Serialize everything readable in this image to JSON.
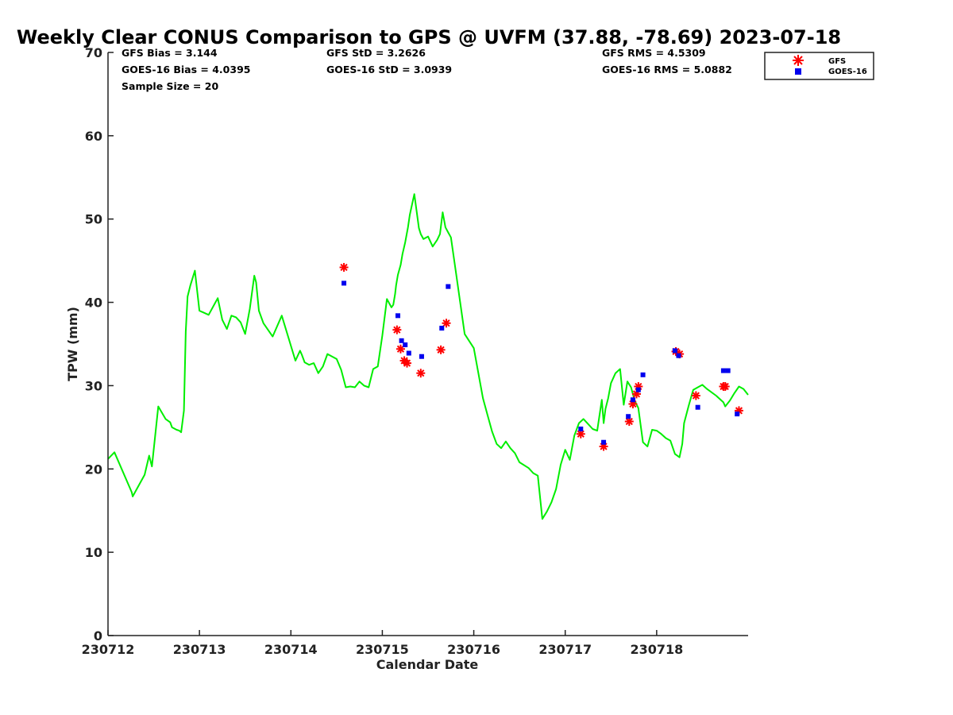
{
  "chart_data": {
    "type": "line",
    "title": "Weekly Clear CONUS Comparison to GPS @ UVFM (37.88, -78.69) 2023-07-18",
    "xlabel": "Calendar Date",
    "ylabel": "TPW (mm)",
    "xlim": [
      "230712",
      "230719"
    ],
    "ylim": [
      0,
      70
    ],
    "yticks": [
      0,
      10,
      20,
      30,
      40,
      50,
      60,
      70
    ],
    "xtick_labels": [
      "230712",
      "230713",
      "230714",
      "230715",
      "230716",
      "230717",
      "230718"
    ],
    "grid": false,
    "legend_position": "top-right",
    "stats": {
      "gfs_bias": "GFS Bias = 3.144",
      "goes_bias": "GOES-16 Bias = 4.0395",
      "sample_size": "Sample Size = 20",
      "gfs_std": "GFS StD = 3.2626",
      "goes_std": "GOES-16 StD = 3.0939",
      "gfs_rms": "GFS RMS = 4.5309",
      "goes_rms": "GOES-16 RMS = 5.0882"
    },
    "series": [
      {
        "name": "",
        "kind": "line",
        "color": "#00ee00",
        "x": [
          0.0,
          0.07,
          0.26,
          0.27,
          0.4,
          0.45,
          0.48,
          0.55,
          0.63,
          0.68,
          0.7,
          0.75,
          0.78,
          0.8,
          0.83,
          0.85,
          0.87,
          0.9,
          0.95,
          1.0,
          1.1,
          1.2,
          1.25,
          1.3,
          1.35,
          1.4,
          1.45,
          1.5,
          1.55,
          1.6,
          1.62,
          1.65,
          1.7,
          1.75,
          1.8,
          1.9,
          2.05,
          2.1,
          2.12,
          2.15,
          2.2,
          2.25,
          2.3,
          2.35,
          2.4,
          2.5,
          2.55,
          2.6,
          2.65,
          2.7,
          2.75,
          2.8,
          2.85,
          2.9,
          2.95,
          3.0,
          3.05,
          3.1,
          3.12,
          3.14,
          3.15,
          3.17,
          3.2,
          3.22,
          3.25,
          3.28,
          3.3,
          3.35,
          3.4,
          3.42,
          3.45,
          3.5,
          3.55,
          3.6,
          3.63,
          3.66,
          3.69,
          3.72,
          3.75,
          3.8,
          3.9,
          4.0,
          4.1,
          4.15,
          4.2,
          4.25,
          4.3,
          4.35,
          4.4,
          4.45,
          4.5,
          4.6,
          4.65,
          4.7,
          4.75,
          4.8,
          4.85,
          4.9,
          4.95,
          5.0,
          5.05,
          5.1,
          5.15,
          5.2,
          5.25,
          5.3,
          5.35,
          5.4,
          5.42,
          5.44,
          5.47,
          5.5,
          5.55,
          5.6,
          5.64,
          5.68,
          5.72,
          5.76,
          5.8,
          5.85,
          5.9,
          5.95,
          6.0,
          6.05,
          6.1,
          6.15,
          6.2,
          6.25,
          6.28,
          6.3,
          6.35,
          6.4,
          6.45,
          6.5,
          6.55,
          6.65,
          6.73,
          6.75,
          6.8,
          6.85,
          6.9,
          6.95,
          7.0
        ],
        "y": [
          21.2,
          22.0,
          17.2,
          16.7,
          19.3,
          21.6,
          20.3,
          27.5,
          26.0,
          25.6,
          25.0,
          24.7,
          24.6,
          24.4,
          27.0,
          36.5,
          40.7,
          42.0,
          43.8,
          39.0,
          38.5,
          40.5,
          37.9,
          36.8,
          38.4,
          38.2,
          37.6,
          36.2,
          39.2,
          43.2,
          42.4,
          39.0,
          37.5,
          36.7,
          35.9,
          38.4,
          33.0,
          34.2,
          33.7,
          32.8,
          32.5,
          32.7,
          31.5,
          32.3,
          33.8,
          33.2,
          31.9,
          29.8,
          29.9,
          29.8,
          30.5,
          30.0,
          29.8,
          32.0,
          32.3,
          36.0,
          40.4,
          39.4,
          39.7,
          41.0,
          42.0,
          43.3,
          44.5,
          45.8,
          47.2,
          49.0,
          50.5,
          53.0,
          48.9,
          48.2,
          47.6,
          47.9,
          46.7,
          47.5,
          48.2,
          50.8,
          49.0,
          48.4,
          47.8,
          44.0,
          36.2,
          34.5,
          28.5,
          26.5,
          24.5,
          23.0,
          22.5,
          23.3,
          22.5,
          21.9,
          20.8,
          20.1,
          19.5,
          19.2,
          14.0,
          14.9,
          16.0,
          17.6,
          20.5,
          22.3,
          21.1,
          24.0,
          25.5,
          26.0,
          25.4,
          24.8,
          24.6,
          28.3,
          25.5,
          27.2,
          28.5,
          30.3,
          31.5,
          32.0,
          27.7,
          30.5,
          29.8,
          28.2,
          27.3,
          23.2,
          22.7,
          24.7,
          24.6,
          24.2,
          23.7,
          23.4,
          21.8,
          21.4,
          23.0,
          25.5,
          27.6,
          29.5,
          29.8,
          30.1,
          29.6,
          28.8,
          28.0,
          27.5,
          28.2,
          29.1,
          29.9,
          29.6,
          28.9
        ]
      },
      {
        "name": "GFS",
        "kind": "scatter",
        "marker": "asterisk",
        "color": "#ff0000",
        "x": [
          2.58,
          3.16,
          3.2,
          3.24,
          3.27,
          3.42,
          3.64,
          3.7,
          5.17,
          5.42,
          5.7,
          5.74,
          5.78,
          5.8,
          6.21,
          6.25,
          6.43,
          6.73,
          6.75,
          6.9
        ],
        "y": [
          44.2,
          36.7,
          34.4,
          33.0,
          32.7,
          31.5,
          34.3,
          37.5,
          24.2,
          22.7,
          25.7,
          27.8,
          29.0,
          29.9,
          34.1,
          33.8,
          28.8,
          29.9,
          29.9,
          27.0
        ]
      },
      {
        "name": "GOES-16",
        "kind": "scatter",
        "marker": "square",
        "color": "#0000ee",
        "x": [
          2.58,
          3.17,
          3.21,
          3.25,
          3.29,
          3.43,
          3.65,
          3.72,
          5.17,
          5.42,
          5.69,
          5.74,
          5.8,
          5.85,
          6.2,
          6.24,
          6.45,
          6.73,
          6.78,
          6.88
        ],
        "y": [
          42.3,
          38.4,
          35.4,
          34.9,
          33.9,
          33.5,
          36.9,
          41.9,
          24.8,
          23.2,
          26.3,
          28.3,
          29.5,
          31.3,
          34.2,
          33.6,
          27.4,
          31.8,
          31.8,
          26.6
        ]
      }
    ]
  }
}
